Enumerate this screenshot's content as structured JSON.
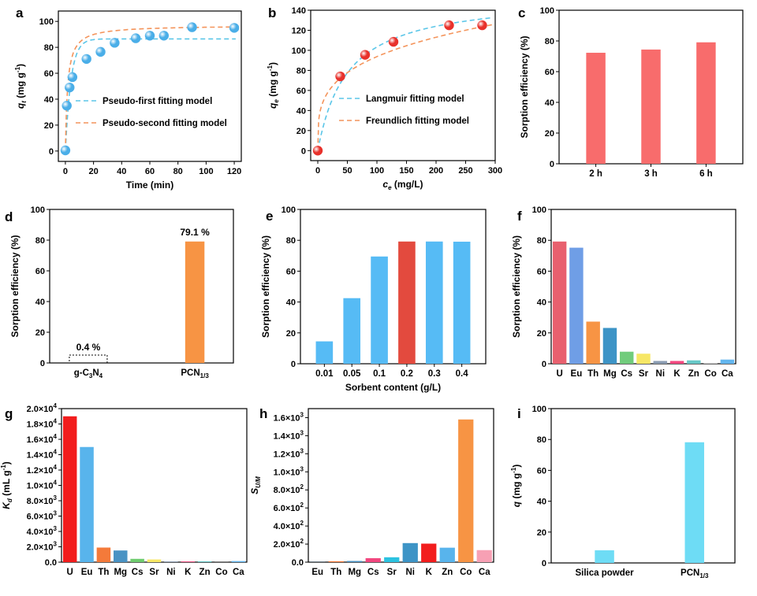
{
  "chart_data": [
    {
      "type": "scatter",
      "panel": "a",
      "xlabel": "Time (min)",
      "ylabel": "q_t (mg g-1)",
      "ylabel_main": "q",
      "ylabel_sub": "t",
      "ylabel_rest": " (mg g",
      "ylabel_sup": "-1",
      "ylabel_end": ")",
      "xlim": [
        -5,
        125
      ],
      "ylim": [
        -8,
        108
      ],
      "xticks": [
        0,
        20,
        40,
        60,
        80,
        100,
        120
      ],
      "yticks": [
        0,
        20,
        40,
        60,
        80,
        100
      ],
      "points": [
        [
          0,
          0.5
        ],
        [
          1,
          35
        ],
        [
          3,
          49
        ],
        [
          5,
          57
        ],
        [
          15,
          71
        ],
        [
          25,
          76.5
        ],
        [
          35,
          83.5
        ],
        [
          50,
          87
        ],
        [
          60,
          89
        ],
        [
          70,
          89
        ],
        [
          90,
          95.5
        ],
        [
          120,
          95
        ]
      ],
      "series": [
        {
          "name": "Pseudo-first fitting model",
          "color": "#5bc6e8",
          "qe": 86.5,
          "k": 0.25
        },
        {
          "name": "Pseudo-second fitting model",
          "color": "#f4945b",
          "qe": 97,
          "k": 0.0065
        }
      ],
      "point_color": "#4aaee8",
      "legend": "center-right"
    },
    {
      "type": "scatter",
      "panel": "b",
      "xlabel": "c_e (mg/L)",
      "xlabel_main": "c",
      "xlabel_sub": "e",
      "xlabel_rest": " (mg/L)",
      "ylabel": "q_e (mg g-1)",
      "ylabel_main": "q",
      "ylabel_sub": "e",
      "ylabel_rest": " (mg g",
      "ylabel_sup": "-1",
      "ylabel_end": ")",
      "xlim": [
        -12,
        300
      ],
      "ylim": [
        -10,
        140
      ],
      "xticks": [
        0,
        50,
        100,
        150,
        200,
        250,
        300
      ],
      "yticks": [
        0,
        20,
        40,
        60,
        80,
        100,
        120,
        140
      ],
      "points": [
        [
          0,
          0
        ],
        [
          38,
          74
        ],
        [
          80,
          95.5
        ],
        [
          128,
          108.5
        ],
        [
          222,
          125
        ],
        [
          278,
          125
        ]
      ],
      "series": [
        {
          "name": "Langmuir fitting model",
          "color": "#5bc6e8",
          "qm": 155,
          "kl": 0.02
        },
        {
          "name": "Freundlich fitting model",
          "color": "#f4945b",
          "kf": 27,
          "n": 3.7
        }
      ],
      "point_color": "#e8312b",
      "legend": "bottom-right"
    },
    {
      "type": "bar",
      "panel": "c",
      "ylabel": "Sorption efficiency (%)",
      "categories": [
        "2 h",
        "3 h",
        "6 h"
      ],
      "values": [
        72.3,
        74.4,
        79.1
      ],
      "colors": [
        "#f86c6c",
        "#f86c6c",
        "#f86c6c"
      ],
      "ylim": [
        0,
        100
      ],
      "yticks": [
        0,
        20,
        40,
        60,
        80,
        100
      ]
    },
    {
      "type": "bar",
      "panel": "d",
      "ylabel": "Sorption efficiency (%)",
      "categories": [
        "g-C3N4",
        "PCN1/3"
      ],
      "category_parts": [
        [
          "g-C",
          "3",
          "N",
          "4"
        ],
        [
          "PCN",
          "1/3"
        ]
      ],
      "values": [
        0.4,
        79.1
      ],
      "data_labels": [
        "0.4 %",
        "79.1 %"
      ],
      "colors": [
        "#ffffff",
        "#f79444"
      ],
      "ylim": [
        0,
        100
      ],
      "yticks": [
        0,
        20,
        40,
        60,
        80,
        100
      ]
    },
    {
      "type": "bar",
      "panel": "e",
      "xlabel": "Sorbent content (g/L)",
      "ylabel": "Sorption efficiency (%)",
      "categories": [
        "0.01",
        "0.05",
        "0.1",
        "0.2",
        "0.3",
        "0.4"
      ],
      "values": [
        14.5,
        42.5,
        69.5,
        79.2,
        79.2,
        79.1
      ],
      "colors": [
        "#56bbf5",
        "#56bbf5",
        "#56bbf5",
        "#e34a3e",
        "#56bbf5",
        "#56bbf5"
      ],
      "ylim": [
        0,
        100
      ],
      "yticks": [
        0,
        20,
        40,
        60,
        80,
        100
      ]
    },
    {
      "type": "bar",
      "panel": "f",
      "ylabel": "Sorption efficiency (%)",
      "categories": [
        "U",
        "Eu",
        "Th",
        "Mg",
        "Cs",
        "Sr",
        "Ni",
        "K",
        "Zn",
        "Co",
        "Ca"
      ],
      "values": [
        79.2,
        75.2,
        27.3,
        23.2,
        7.8,
        6.5,
        1.8,
        1.8,
        2.2,
        0.3,
        2.7
      ],
      "colors": [
        "#e8606e",
        "#6f9ee6",
        "#f79444",
        "#3d94c6",
        "#71cc7c",
        "#f7e765",
        "#8a9cb2",
        "#f2477f",
        "#67c8c7",
        "#cccccc",
        "#63b6ee"
      ],
      "ylim": [
        0,
        100
      ],
      "yticks": [
        0,
        20,
        40,
        60,
        80,
        100
      ]
    },
    {
      "type": "bar",
      "panel": "g",
      "ylabel": "K_d (mL g-1)",
      "ylabel_main": "K",
      "ylabel_sub": "d",
      "ylabel_rest": " (mL g",
      "ylabel_sup": "-1",
      "ylabel_end": ")",
      "categories": [
        "U",
        "Eu",
        "Th",
        "Mg",
        "Cs",
        "Sr",
        "Ni",
        "K",
        "Zn",
        "Co",
        "Ca"
      ],
      "values": [
        19000,
        15000,
        1900,
        1520,
        430,
        350,
        90,
        90,
        110,
        15,
        140
      ],
      "colors": [
        "#f21d1d",
        "#58b4ec",
        "#f47a3a",
        "#4a93c4",
        "#6fcc6f",
        "#f7e765",
        "#8a9cb2",
        "#f2477f",
        "#67c8c7",
        "#cccccc",
        "#63b6ee"
      ],
      "ylim": [
        0,
        20000
      ],
      "yticks": [
        0,
        2000,
        4000,
        6000,
        8000,
        10000,
        12000,
        14000,
        16000,
        18000,
        20000
      ],
      "ytick_labels": [
        [
          "0.0",
          ""
        ],
        [
          "2.0",
          "3"
        ],
        [
          "4.0",
          "3"
        ],
        [
          "6.0",
          "3"
        ],
        [
          "8.0",
          "3"
        ],
        [
          "1.0",
          "4"
        ],
        [
          "1.2",
          "4"
        ],
        [
          "1.4",
          "4"
        ],
        [
          "1.6",
          "4"
        ],
        [
          "1.8",
          "4"
        ],
        [
          "2.0",
          "4"
        ]
      ]
    },
    {
      "type": "bar",
      "panel": "h",
      "ylabel": "S_U/M",
      "ylabel_main": "S",
      "ylabel_sub": "U/M",
      "categories": [
        "Eu",
        "Th",
        "Mg",
        "Cs",
        "Sr",
        "Ni",
        "K",
        "Zn",
        "Co",
        "Ca"
      ],
      "values": [
        1.3,
        10,
        13,
        44,
        54,
        211,
        205,
        160,
        1580,
        133
      ],
      "colors": [
        "#58b4ec",
        "#f47a3a",
        "#4a93c4",
        "#f2477f",
        "#2bc2e0",
        "#3d94c6",
        "#f21d1d",
        "#58b4ec",
        "#f79444",
        "#f7a0b4"
      ],
      "ylim": [
        0,
        1700
      ],
      "yticks": [
        0,
        200,
        400,
        600,
        800,
        1000,
        1200,
        1400,
        1600
      ],
      "ytick_labels": [
        [
          "0.0",
          ""
        ],
        [
          "2.0",
          "2"
        ],
        [
          "4.0",
          "2"
        ],
        [
          "6.0",
          "2"
        ],
        [
          "8.0",
          "2"
        ],
        [
          "1.0",
          "3"
        ],
        [
          "1.2",
          "3"
        ],
        [
          "1.4",
          "3"
        ],
        [
          "1.6",
          "3"
        ]
      ]
    },
    {
      "type": "bar",
      "panel": "i",
      "ylabel": "q (mg g-1)",
      "ylabel_main": "q",
      "ylabel_rest": " (mg g",
      "ylabel_sup": "-1",
      "ylabel_end": ")",
      "categories": [
        "Silica powder",
        "PCN1/3"
      ],
      "category_parts": [
        [
          "Silica powder"
        ],
        [
          "PCN",
          "1/3"
        ]
      ],
      "values": [
        8.2,
        78.2
      ],
      "colors": [
        "#6edcf5",
        "#6edcf5"
      ],
      "ylim": [
        0,
        100
      ],
      "yticks": [
        0,
        20,
        40,
        60,
        80,
        100
      ]
    }
  ]
}
